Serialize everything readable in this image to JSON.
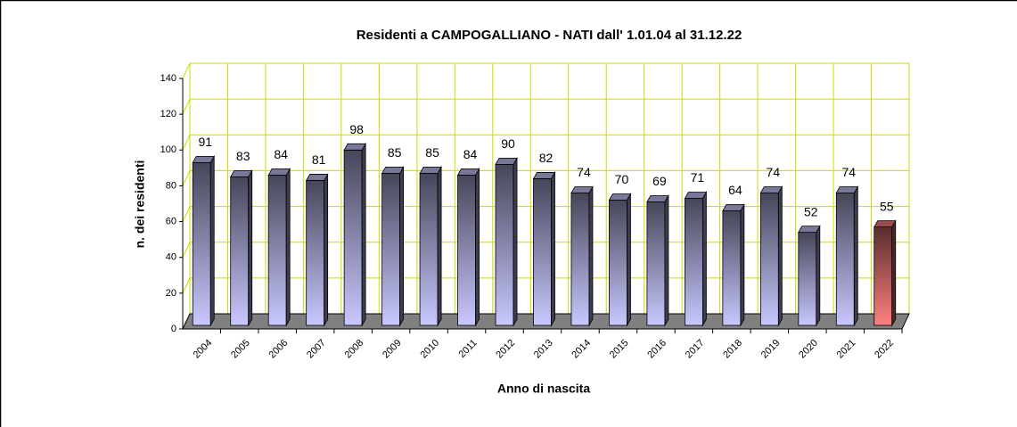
{
  "chart_data": {
    "type": "bar3d",
    "title": "Residenti a CAMPOGALLIANO - NATI dall' 1.01.04 al 31.12.22",
    "x_label": "Anno di nascita",
    "y_label": "n. dei residenti",
    "categories": [
      "2004",
      "2005",
      "2006",
      "2007",
      "2008",
      "2009",
      "2010",
      "2011",
      "2012",
      "2013",
      "2014",
      "2015",
      "2016",
      "2017",
      "2018",
      "2019",
      "2020",
      "2021",
      "2022"
    ],
    "values": [
      91,
      83,
      84,
      81,
      98,
      85,
      85,
      84,
      90,
      82,
      74,
      70,
      69,
      71,
      64,
      74,
      52,
      74,
      55
    ],
    "colors": [
      "#c8c8ff",
      "#c8c8ff",
      "#c8c8ff",
      "#c8c8ff",
      "#c8c8ff",
      "#c8c8ff",
      "#c8c8ff",
      "#c8c8ff",
      "#c8c8ff",
      "#c8c8ff",
      "#c8c8ff",
      "#c8c8ff",
      "#c8c8ff",
      "#c8c8ff",
      "#c8c8ff",
      "#c8c8ff",
      "#c8c8ff",
      "#c8c8ff",
      "#ff8080"
    ],
    "ylim": [
      0,
      140
    ],
    "yticks": [
      0,
      20,
      40,
      60,
      80,
      100,
      120,
      140
    ],
    "grid": true,
    "grid_color": "#c8dc00"
  }
}
